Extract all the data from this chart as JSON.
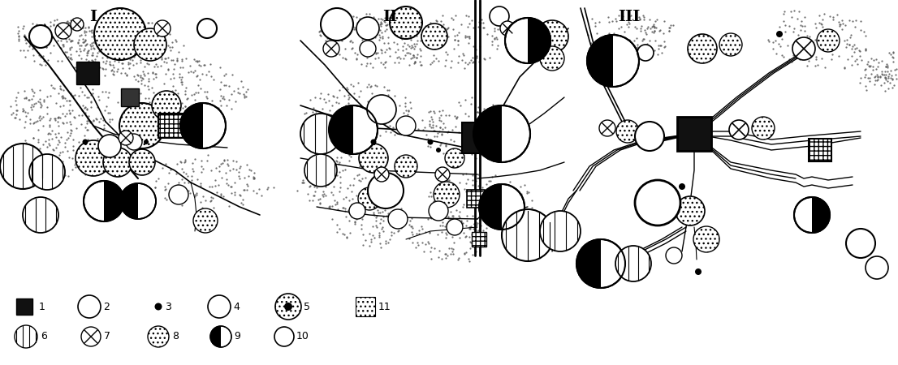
{
  "bg_color": "#ffffff",
  "lc": "#000000",
  "panel_labels": [
    "I",
    "II",
    "III"
  ],
  "figsize": [
    11.06,
    4.5
  ],
  "dpi": 100
}
